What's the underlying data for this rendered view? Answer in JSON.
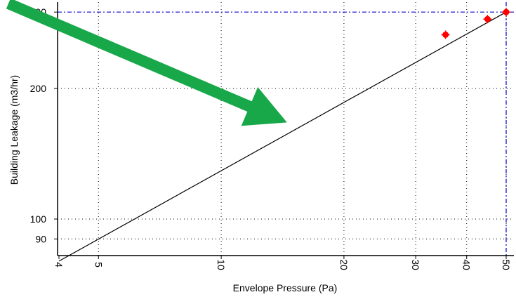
{
  "chart_data": {
    "type": "scatter",
    "xlabel": "Envelope Pressure (Pa)",
    "ylabel": "Building Leakage (m3/hr)",
    "x_scale": "log",
    "y_scale": "log",
    "xlim": [
      4,
      51
    ],
    "ylim": [
      80,
      300
    ],
    "x_ticks": [
      4,
      5,
      10,
      20,
      30,
      40,
      50
    ],
    "y_ticks": [
      90,
      100,
      200,
      300
    ],
    "x_tick_labels": [
      "4",
      "5",
      "10",
      "20",
      "30",
      "40",
      "50"
    ],
    "y_tick_labels": [
      "90",
      "100",
      "200",
      "300"
    ],
    "grid": true,
    "points": [
      {
        "x": 35.5,
        "y": 266
      },
      {
        "x": 45,
        "y": 289
      },
      {
        "x": 50,
        "y": 300
      }
    ],
    "fit_line": [
      {
        "x": 4,
        "y": 80
      },
      {
        "x": 50,
        "y": 300
      }
    ],
    "reference_lines": {
      "x": 50,
      "y": 300
    },
    "colors": {
      "points": "#ff0000",
      "fit_line": "#000000",
      "reference_lines": "#0000cc",
      "grid": "#000000",
      "arrow": "#18a84a"
    },
    "annotations": [
      {
        "type": "arrow",
        "color": "#18a84a",
        "points_to": {
          "x": 14.5,
          "y": 167
        }
      }
    ]
  }
}
